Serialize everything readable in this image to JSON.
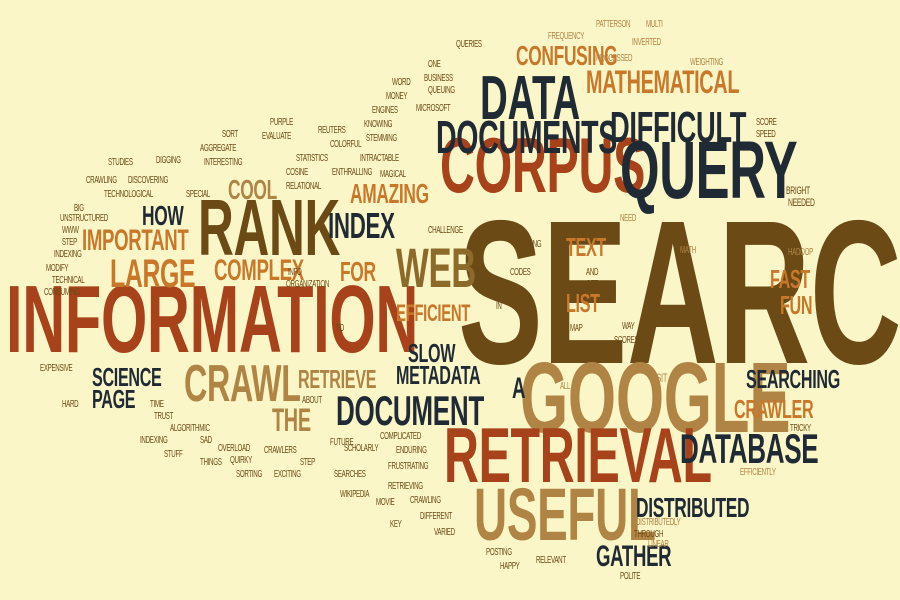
{
  "background_color": "#fbf6c8",
  "palette": {
    "brown": "#6b4a16",
    "dark": "#1f2a35",
    "rust": "#a8421b",
    "orange": "#c9782a",
    "tan": "#b08444",
    "olive": "#8b6a2a"
  },
  "words": [
    {
      "text": "SEARCH",
      "color": "brown"
    },
    {
      "text": "INFORMATION",
      "color": "rust"
    },
    {
      "text": "CORPUS",
      "color": "rust"
    },
    {
      "text": "QUERY",
      "color": "dark"
    },
    {
      "text": "RANK",
      "color": "brown"
    },
    {
      "text": "GOOGLE",
      "color": "tan"
    },
    {
      "text": "RETRIEVAL",
      "color": "rust"
    },
    {
      "text": "USEFUL",
      "color": "tan"
    },
    {
      "text": "DATA",
      "color": "dark"
    },
    {
      "text": "DOCUMENTS",
      "color": "dark"
    },
    {
      "text": "DIFFICULT",
      "color": "dark"
    },
    {
      "text": "CRAWL",
      "color": "tan"
    },
    {
      "text": "DOCUMENT",
      "color": "dark"
    },
    {
      "text": "DATABASE",
      "color": "dark"
    },
    {
      "text": "WEB",
      "color": "olive"
    },
    {
      "text": "LARGE",
      "color": "orange"
    },
    {
      "text": "COMPLEX",
      "color": "orange"
    },
    {
      "text": "INDEX",
      "color": "dark"
    },
    {
      "text": "IMPORTANT",
      "color": "orange"
    },
    {
      "text": "CONFUSING",
      "color": "orange"
    },
    {
      "text": "MATHEMATICAL",
      "color": "orange"
    },
    {
      "text": "COOL",
      "color": "tan"
    },
    {
      "text": "AMAZING",
      "color": "orange"
    },
    {
      "text": "HOW",
      "color": "dark"
    },
    {
      "text": "FOR",
      "color": "orange"
    },
    {
      "text": "SCIENCE",
      "color": "dark"
    },
    {
      "text": "PAGE",
      "color": "dark"
    },
    {
      "text": "THE",
      "color": "tan"
    },
    {
      "text": "RETRIEVE",
      "color": "tan"
    },
    {
      "text": "METADATA",
      "color": "dark"
    },
    {
      "text": "SLOW",
      "color": "dark"
    },
    {
      "text": "A",
      "color": "dark"
    },
    {
      "text": "SEARCHING",
      "color": "dark"
    },
    {
      "text": "CRAWLER",
      "color": "orange"
    },
    {
      "text": "DISTRIBUTED",
      "color": "dark"
    },
    {
      "text": "GATHER",
      "color": "dark"
    },
    {
      "text": "FAST",
      "color": "orange"
    },
    {
      "text": "FUN",
      "color": "orange"
    },
    {
      "text": "LIST",
      "color": "orange"
    },
    {
      "text": "TEXT",
      "color": "orange"
    },
    {
      "text": "EFFICIENT",
      "color": "orange"
    },
    {
      "text": "VISIT",
      "color": "tan"
    },
    {
      "text": "MATH",
      "color": "tan"
    },
    {
      "text": "NEED",
      "color": "tan"
    },
    {
      "text": "HADOOP",
      "color": "tan"
    },
    {
      "text": "BRIGHT",
      "color": "brown"
    },
    {
      "text": "NEEDED",
      "color": "brown"
    },
    {
      "text": "SCORE",
      "color": "brown"
    },
    {
      "text": "SPEED",
      "color": "brown"
    },
    {
      "text": "FREQUENCY",
      "color": "tan"
    },
    {
      "text": "PATTERSON",
      "color": "tan"
    },
    {
      "text": "MULTI",
      "color": "tan"
    },
    {
      "text": "INVERTED",
      "color": "tan"
    },
    {
      "text": "WEIGHTING",
      "color": "tan"
    },
    {
      "text": "PROCESSED",
      "color": "tan"
    },
    {
      "text": "QUERIES",
      "color": "brown"
    },
    {
      "text": "BUSINESS",
      "color": "brown"
    },
    {
      "text": "QUEUING",
      "color": "brown"
    },
    {
      "text": "WORD",
      "color": "brown"
    },
    {
      "text": "ONE",
      "color": "brown"
    },
    {
      "text": "MONEY",
      "color": "brown"
    },
    {
      "text": "ENGINES",
      "color": "brown"
    },
    {
      "text": "MICROSOFT",
      "color": "brown"
    },
    {
      "text": "KNOWING",
      "color": "brown"
    },
    {
      "text": "STEMMING",
      "color": "brown"
    },
    {
      "text": "REUTERS",
      "color": "brown"
    },
    {
      "text": "COLORFUL",
      "color": "brown"
    },
    {
      "text": "STATISTICS",
      "color": "brown"
    },
    {
      "text": "INTRACTABLE",
      "color": "brown"
    },
    {
      "text": "ENTHRALLING",
      "color": "brown"
    },
    {
      "text": "MAGICAL",
      "color": "brown"
    },
    {
      "text": "COSINE",
      "color": "brown"
    },
    {
      "text": "RELATIONAL",
      "color": "brown"
    },
    {
      "text": "PURPLE",
      "color": "brown"
    },
    {
      "text": "EVALUATE",
      "color": "brown"
    },
    {
      "text": "SORT",
      "color": "brown"
    },
    {
      "text": "AGGREGATE",
      "color": "brown"
    },
    {
      "text": "INTERESTING",
      "color": "brown"
    },
    {
      "text": "STUDIES",
      "color": "brown"
    },
    {
      "text": "DIGGING",
      "color": "brown"
    },
    {
      "text": "CRAWLING",
      "color": "brown"
    },
    {
      "text": "DISCOVERING",
      "color": "brown"
    },
    {
      "text": "TECHNOLOGICAL",
      "color": "brown"
    },
    {
      "text": "SPECIAL",
      "color": "brown"
    },
    {
      "text": "BIG",
      "color": "brown"
    },
    {
      "text": "UNSTRUCTURED",
      "color": "brown"
    },
    {
      "text": "WWW",
      "color": "brown"
    },
    {
      "text": "STEP",
      "color": "brown"
    },
    {
      "text": "INDEXING",
      "color": "brown"
    },
    {
      "text": "MODIFY",
      "color": "brown"
    },
    {
      "text": "TECHNICAL",
      "color": "brown"
    },
    {
      "text": "CONSUMING",
      "color": "brown"
    },
    {
      "text": "INFO",
      "color": "brown"
    },
    {
      "text": "ORGANIZATION",
      "color": "brown"
    },
    {
      "text": "TO",
      "color": "brown"
    },
    {
      "text": "EXPENSIVE",
      "color": "brown"
    },
    {
      "text": "HARD",
      "color": "brown"
    },
    {
      "text": "TIME",
      "color": "brown"
    },
    {
      "text": "TRUST",
      "color": "brown"
    },
    {
      "text": "ALGORITHMIC",
      "color": "brown"
    },
    {
      "text": "INDEXING",
      "color": "brown"
    },
    {
      "text": "SAD",
      "color": "brown"
    },
    {
      "text": "STUFF",
      "color": "brown"
    },
    {
      "text": "THINGS",
      "color": "brown"
    },
    {
      "text": "QUIRKY",
      "color": "brown"
    },
    {
      "text": "OVERLOAD",
      "color": "brown"
    },
    {
      "text": "CRAWLERS",
      "color": "brown"
    },
    {
      "text": "SORTING",
      "color": "brown"
    },
    {
      "text": "EXCITING",
      "color": "brown"
    },
    {
      "text": "STEP",
      "color": "brown"
    },
    {
      "text": "SEARCHES",
      "color": "brown"
    },
    {
      "text": "FUTURE",
      "color": "brown"
    },
    {
      "text": "SCHOLARLY",
      "color": "brown"
    },
    {
      "text": "COMPLICATED",
      "color": "brown"
    },
    {
      "text": "FRUSTRATING",
      "color": "brown"
    },
    {
      "text": "ENDURING",
      "color": "brown"
    },
    {
      "text": "WIKIPEDIA",
      "color": "brown"
    },
    {
      "text": "RETRIEVING",
      "color": "brown"
    },
    {
      "text": "MOVIE",
      "color": "brown"
    },
    {
      "text": "CRAWLING",
      "color": "brown"
    },
    {
      "text": "KEY",
      "color": "brown"
    },
    {
      "text": "DIFFERENT",
      "color": "brown"
    },
    {
      "text": "VARIED",
      "color": "brown"
    },
    {
      "text": "POSTING",
      "color": "brown"
    },
    {
      "text": "HAPPY",
      "color": "brown"
    },
    {
      "text": "RELEVANT",
      "color": "brown"
    },
    {
      "text": "POLITE",
      "color": "brown"
    },
    {
      "text": "THROUGH",
      "color": "brown"
    },
    {
      "text": "LINEAR",
      "color": "tan"
    },
    {
      "text": "DISTRIBUTEDLY",
      "color": "tan"
    },
    {
      "text": "EFFICIENTLY",
      "color": "tan"
    },
    {
      "text": "TRICKY",
      "color": "brown"
    },
    {
      "text": "PARSING",
      "color": "brown"
    },
    {
      "text": "CODES",
      "color": "brown"
    },
    {
      "text": "OF",
      "color": "brown"
    },
    {
      "text": "AND",
      "color": "brown"
    },
    {
      "text": "GET",
      "color": "brown"
    },
    {
      "text": "MAP",
      "color": "brown"
    },
    {
      "text": "WAY",
      "color": "brown"
    },
    {
      "text": "SCORES",
      "color": "brown"
    },
    {
      "text": "ALL",
      "color": "tan"
    },
    {
      "text": "IN",
      "color": "brown"
    },
    {
      "text": "CHALLENGE",
      "color": "brown"
    },
    {
      "text": "ABOUT",
      "color": "brown"
    }
  ]
}
